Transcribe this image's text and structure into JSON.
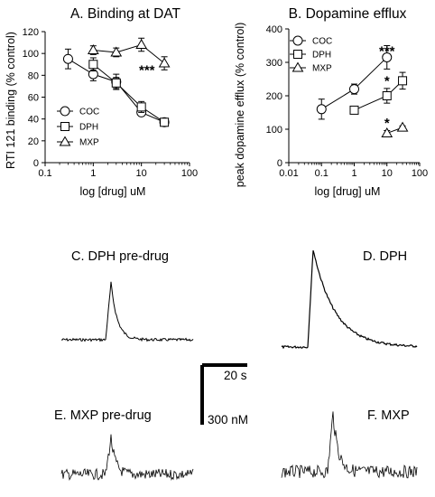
{
  "chart_data": [
    {
      "type": "line",
      "panel": "A",
      "title": "A. Binding at DAT",
      "xlabel": "log [drug] uM",
      "ylabel": "RTI 121 binding (% control)",
      "xscale": "log",
      "xlim": [
        0.1,
        100
      ],
      "ylim": [
        0,
        120
      ],
      "xticks": [
        "0.1",
        "1",
        "10",
        "100"
      ],
      "yticks": [
        "0",
        "20",
        "40",
        "60",
        "80",
        "100",
        "120"
      ],
      "legend": "bottom-left",
      "annotations": [
        {
          "text": "***",
          "x": 13,
          "y": 88
        }
      ],
      "series": [
        {
          "name": "COC",
          "marker": "circle",
          "x": [
            0.3,
            1,
            3,
            10,
            30
          ],
          "y": [
            95,
            81,
            74,
            46,
            37
          ],
          "err": [
            9,
            6,
            7,
            3,
            2
          ]
        },
        {
          "name": "DPH",
          "marker": "square",
          "x": [
            1,
            3,
            10,
            30
          ],
          "y": [
            90,
            73,
            51,
            37
          ],
          "err": [
            6,
            5,
            5,
            2
          ]
        },
        {
          "name": "MXP",
          "marker": "triangle",
          "x": [
            1,
            3,
            10,
            30
          ],
          "y": [
            103,
            101,
            108,
            91
          ],
          "err": [
            4,
            4,
            6,
            6
          ]
        }
      ]
    },
    {
      "type": "line",
      "panel": "B",
      "title": "B. Dopamine efflux",
      "xlabel": "log [drug] uM",
      "ylabel": "peak dopamine efflux (% control)",
      "xscale": "log",
      "xlim": [
        0.01,
        100
      ],
      "ylim": [
        0,
        400
      ],
      "xticks": [
        "0.01",
        "0.1",
        "1",
        "10",
        "100"
      ],
      "yticks": [
        "0",
        "100",
        "200",
        "300",
        "400"
      ],
      "legend": "top-left",
      "annotations": [
        {
          "text": "***",
          "x": 10,
          "y": 345
        },
        {
          "text": "*",
          "x": 10,
          "y": 255
        },
        {
          "text": "*",
          "x": 10,
          "y": 130
        }
      ],
      "series": [
        {
          "name": "COC",
          "marker": "circle",
          "x": [
            0.1,
            1,
            10
          ],
          "y": [
            160,
            220,
            315
          ],
          "err": [
            30,
            15,
            35
          ]
        },
        {
          "name": "DPH",
          "marker": "square",
          "x": [
            1,
            10,
            30
          ],
          "y": [
            157,
            200,
            245
          ],
          "err": [
            0,
            22,
            25
          ]
        },
        {
          "name": "MXP",
          "marker": "triangle",
          "x": [
            10,
            30
          ],
          "y": [
            88,
            105
          ],
          "err": [
            8,
            5
          ]
        }
      ]
    }
  ],
  "traces": [
    {
      "id": "C",
      "label": "C. DPH pre-drug"
    },
    {
      "id": "D",
      "label": "D. DPH"
    },
    {
      "id": "E",
      "label": "E. MXP pre-drug"
    },
    {
      "id": "F",
      "label": "F. MXP"
    }
  ],
  "scale_bar": {
    "time_label": "20 s",
    "conc_label": "300 nM"
  }
}
